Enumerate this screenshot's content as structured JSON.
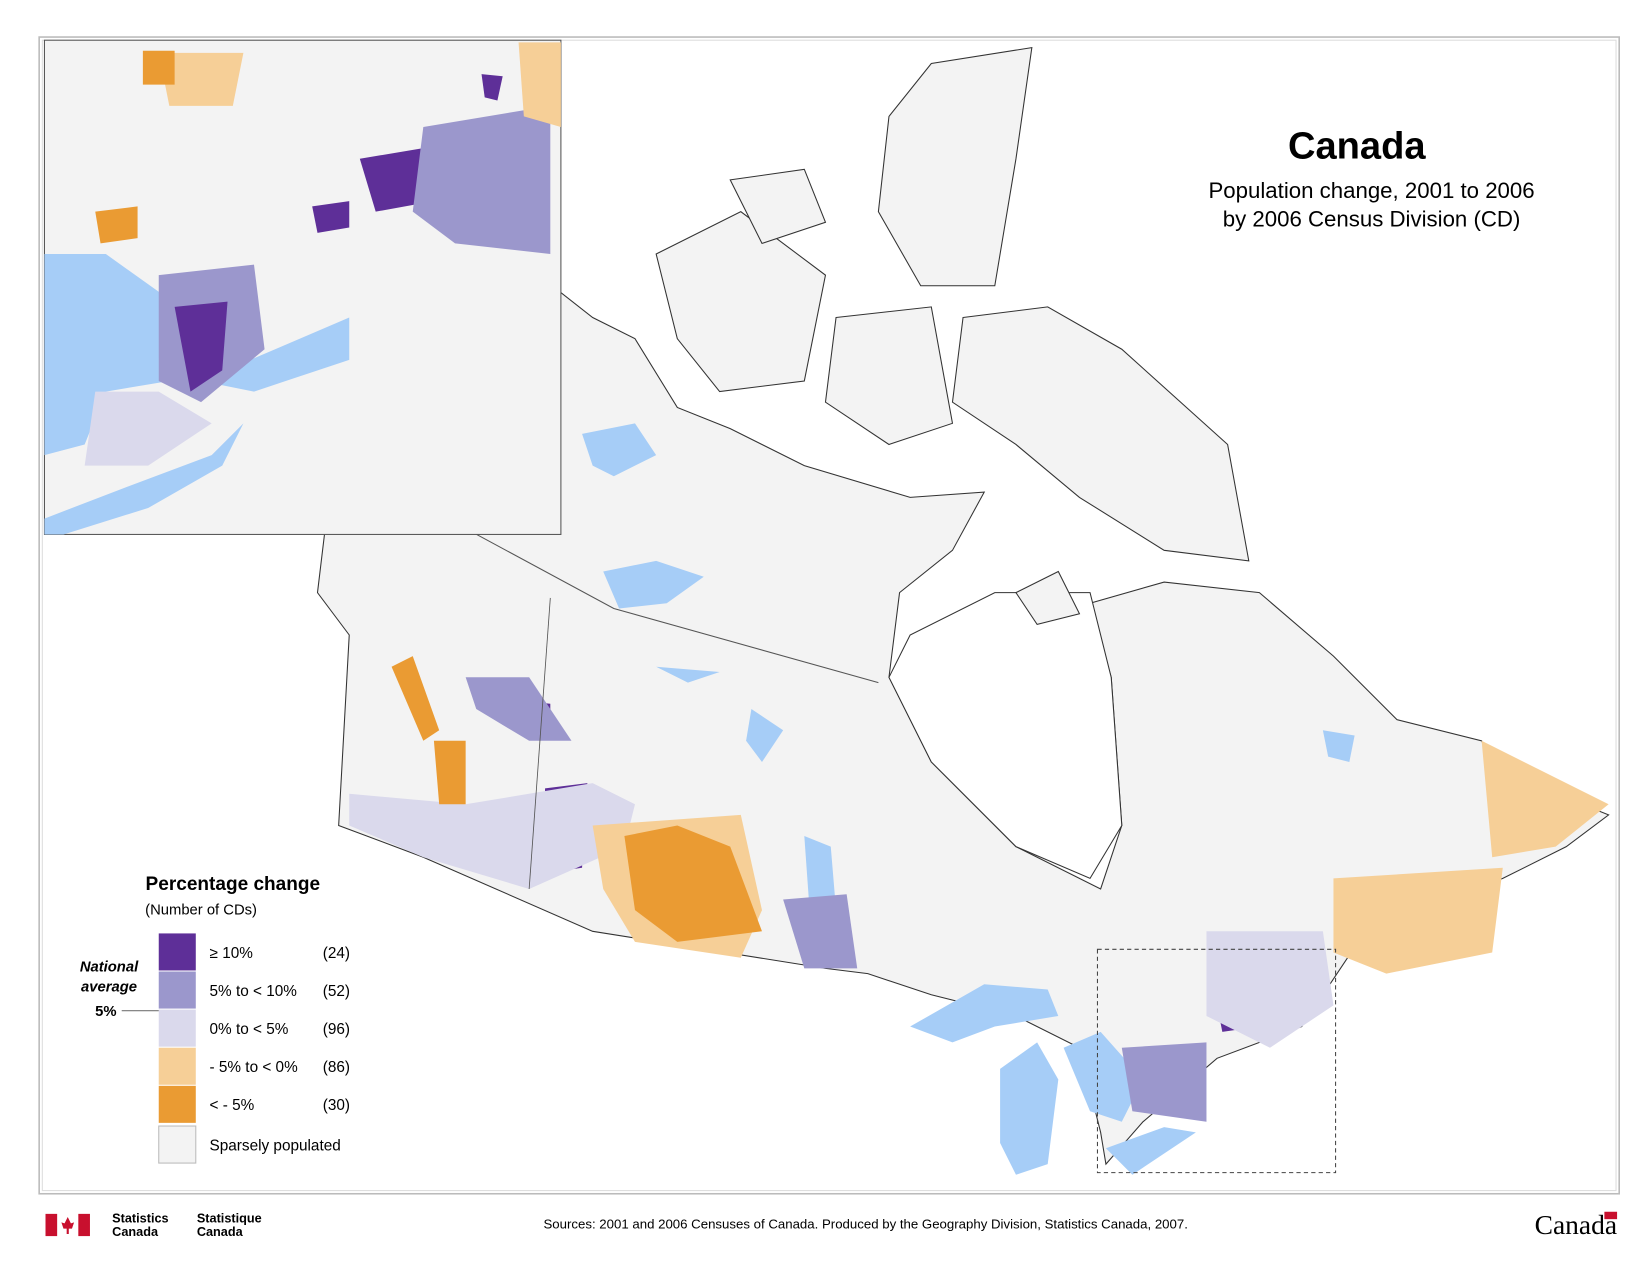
{
  "title": "Canada",
  "subtitle": [
    "Population change, 2001 to 2006",
    "by 2006 Census Division (CD)"
  ],
  "legend": {
    "title": "Percentage change",
    "subtitle": "(Number of CDs)",
    "items": [
      {
        "label": "≥ 10%",
        "count": "(24)",
        "color": "#5e2f98"
      },
      {
        "label": "5% to < 10%",
        "count": "(52)",
        "color": "#9b97cc"
      },
      {
        "label": "0% to < 5%",
        "count": "(96)",
        "color": "#dad9ec"
      },
      {
        "label": "- 5% to < 0%",
        "count": "(86)",
        "color": "#f6cf97"
      },
      {
        "label": "< - 5%",
        "count": "(30)",
        "color": "#ea9b33"
      },
      {
        "label": "Sparsely populated",
        "color": "#f3f3f3"
      }
    ],
    "national_average": {
      "label": [
        "National",
        "average"
      ],
      "value": "5%"
    }
  },
  "footer": {
    "sources": "Sources: 2001 and 2006 Censuses of Canada. Produced by the Geography Division, Statistics Canada, 2007.",
    "agency_en": [
      "Statistics",
      "Canada"
    ],
    "agency_fr": [
      "Statistique",
      "Canada"
    ],
    "wordmark": "Canada"
  }
}
